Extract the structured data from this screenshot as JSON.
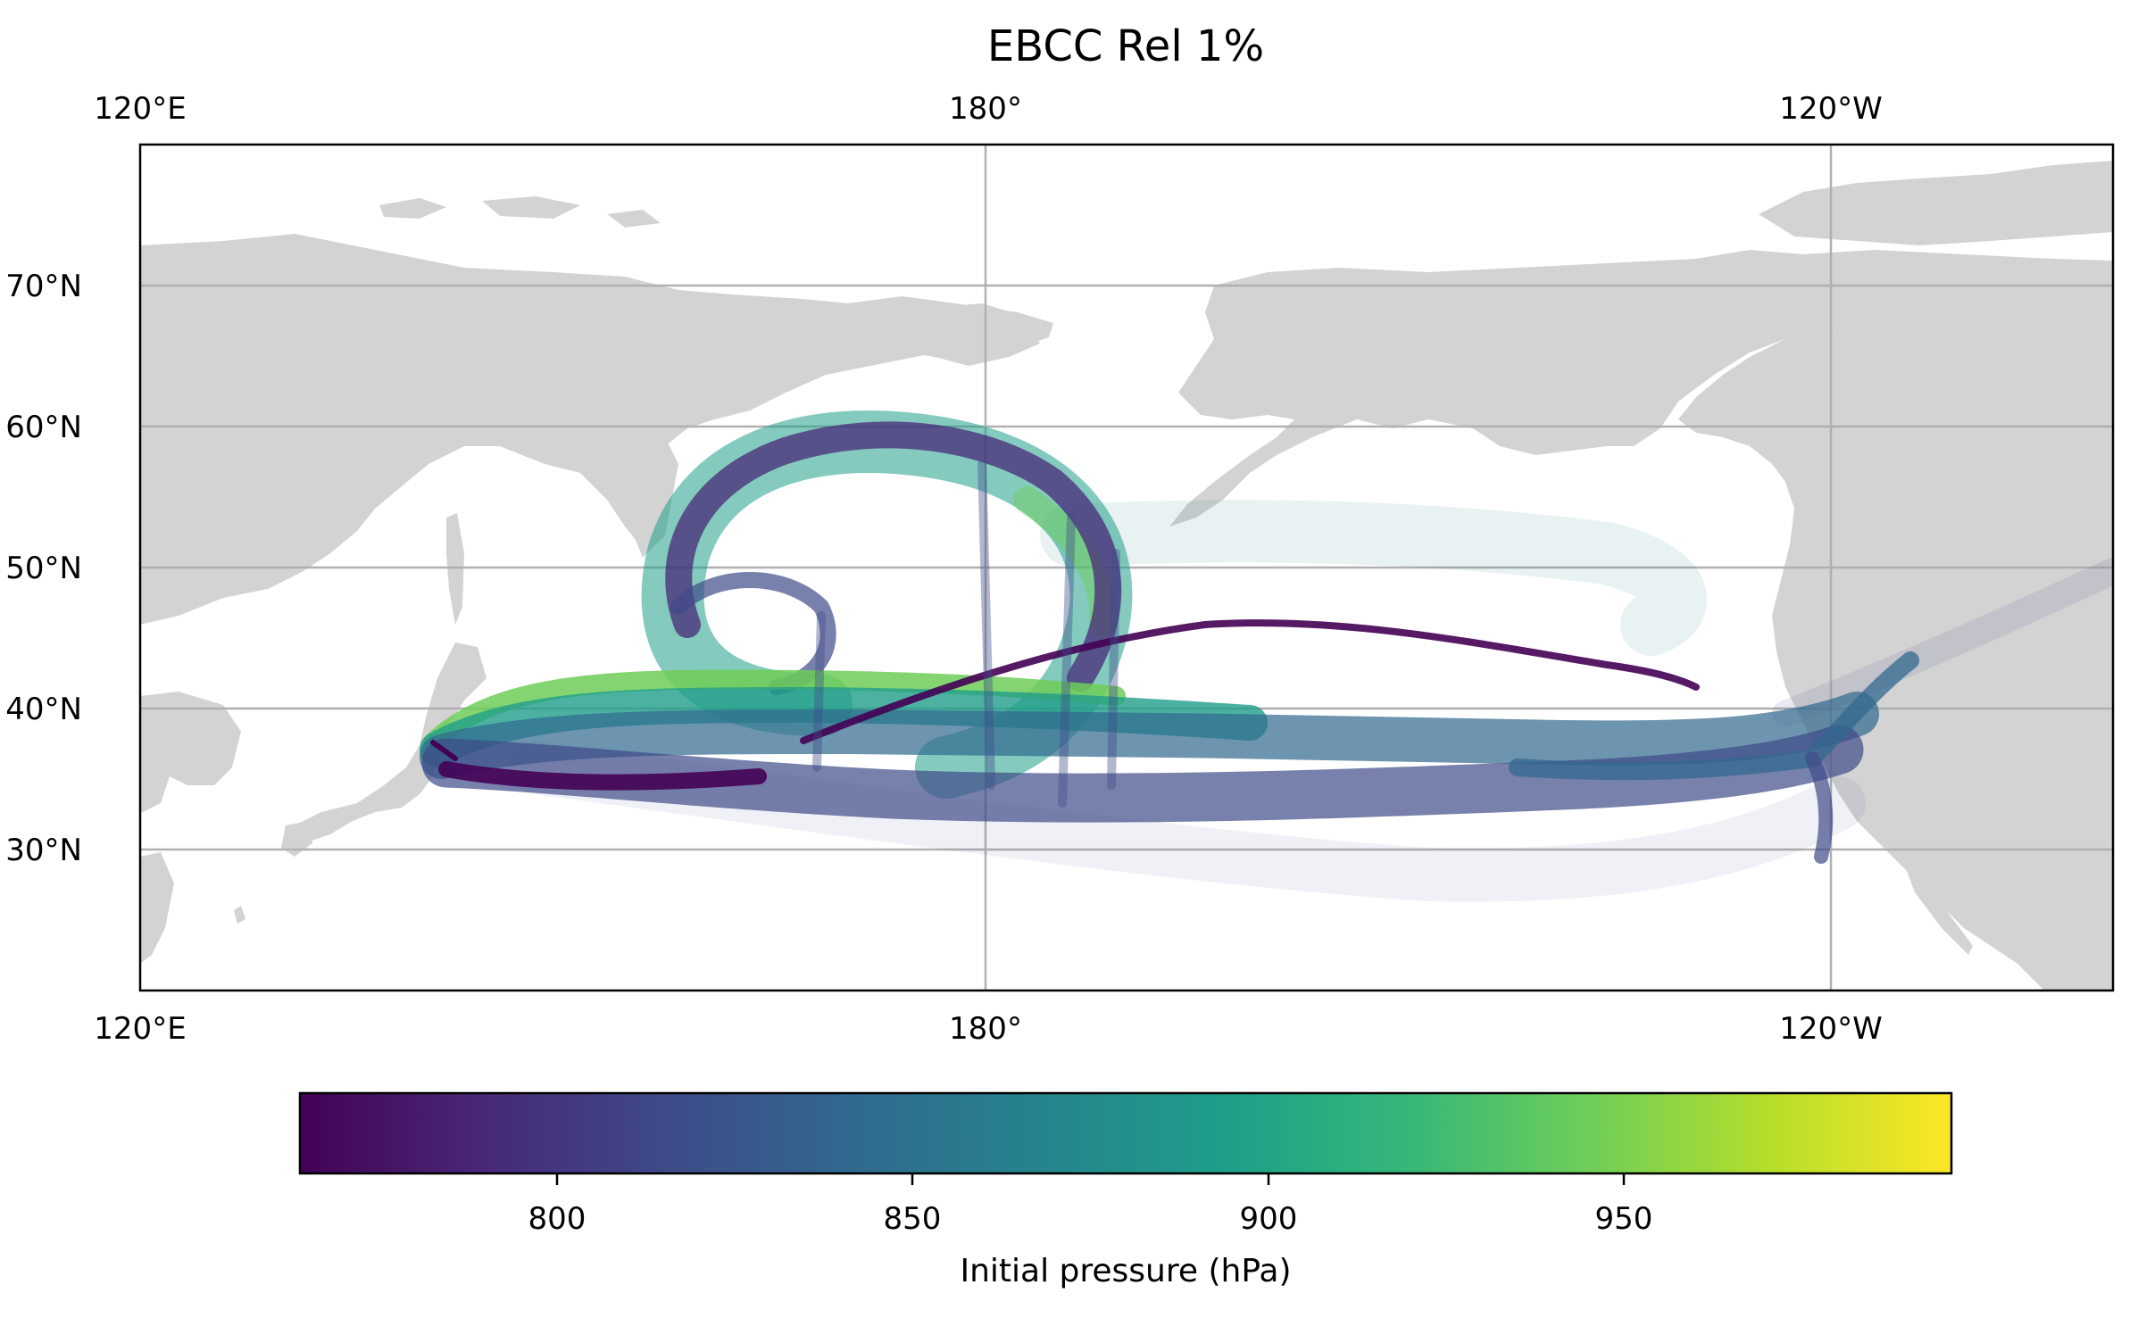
{
  "title": "EBCC Rel 1%",
  "map": {
    "lon_labels_top": [
      "120°E",
      "180°",
      "120°W"
    ],
    "lon_labels_bottom": [
      "120°E",
      "180°",
      "120°W"
    ],
    "lat_labels": [
      "70°N",
      "60°N",
      "50°N",
      "40°N",
      "30°N"
    ],
    "extent": {
      "lon_min": 120,
      "lon_max": 259,
      "lat_min": 20,
      "lat_max": 80
    },
    "gridlines": true,
    "land_color": "#d3d3d3",
    "ocean_color": "#ffffff",
    "gridline_color": "#b0b0b0",
    "release_point": {
      "lon": 141,
      "lat": 37.5
    }
  },
  "colorbar": {
    "label": "Initial pressure (hPa)",
    "ticks": [
      "800",
      "850",
      "900",
      "950"
    ],
    "range": [
      764,
      994
    ],
    "colormap": "viridis",
    "orientation": "horizontal"
  },
  "colors": {
    "viridis": [
      "#440154",
      "#482878",
      "#3e4a89",
      "#31688e",
      "#26828e",
      "#1f9e89",
      "#35b779",
      "#6ece58",
      "#b5de2b",
      "#fde725"
    ]
  }
}
